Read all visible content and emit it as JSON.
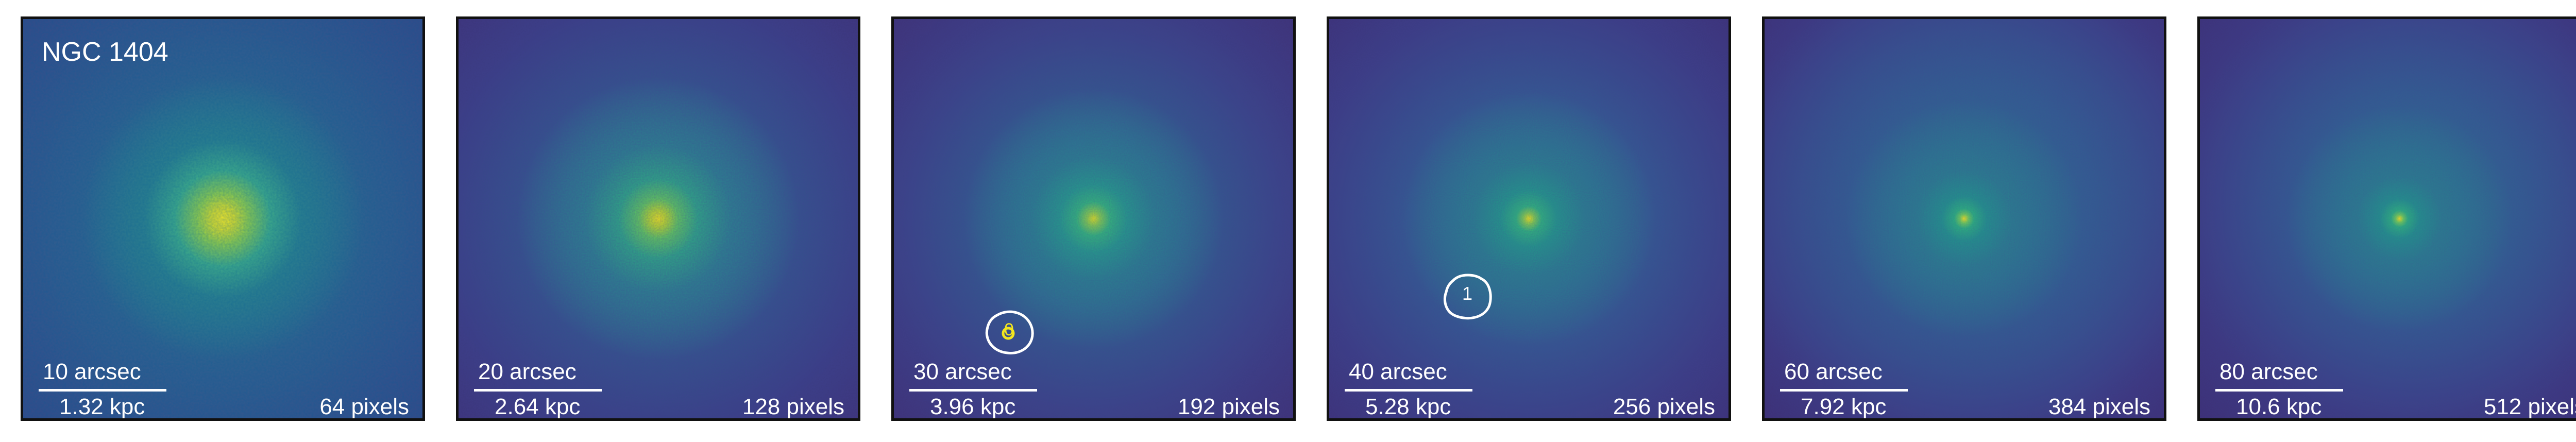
{
  "panels": [
    {
      "title": "NGC 1404",
      "arcsec": "10 arcsec",
      "kpc": "1.32 kpc",
      "pixels": "64 pixels"
    },
    {
      "title": "",
      "arcsec": "20 arcsec",
      "kpc": "2.64 kpc",
      "pixels": "128 pixels"
    },
    {
      "title": "",
      "arcsec": "30 arcsec",
      "kpc": "3.96 kpc",
      "pixels": "192 pixels",
      "contour_label": "0"
    },
    {
      "title": "",
      "arcsec": "40 arcsec",
      "kpc": "5.28 kpc",
      "pixels": "256 pixels",
      "contour_label": "1"
    },
    {
      "title": "",
      "arcsec": "60 arcsec",
      "kpc": "7.92 kpc",
      "pixels": "384 pixels"
    },
    {
      "title": "",
      "arcsec": "80 arcsec",
      "kpc": "10.6 kpc",
      "pixels": "512 pixels"
    }
  ],
  "colors": {
    "background": "#3b2a70",
    "core": "#f2e51e",
    "mid": "#6ccd59",
    "halo": "#22a784",
    "text": "#ffffff",
    "contour_highlight": "#f2e51e"
  }
}
